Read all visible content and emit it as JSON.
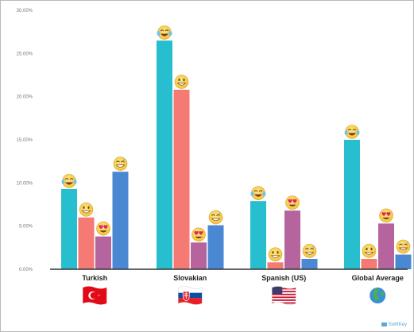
{
  "chart_data": {
    "type": "bar",
    "title": "",
    "xlabel": "",
    "ylabel": "",
    "ylim": [
      0,
      30
    ],
    "yticks": [
      {
        "value": 0,
        "label": "0.00%"
      },
      {
        "value": 5,
        "label": "5.00%"
      },
      {
        "value": 10,
        "label": "10.00%"
      },
      {
        "value": 15,
        "label": "15.00%"
      },
      {
        "value": 20,
        "label": "20.00%"
      },
      {
        "value": 25,
        "label": "25.00%"
      },
      {
        "value": 30,
        "label": "30.00%"
      }
    ],
    "grid": false,
    "legend": "none",
    "categories": [
      "Turkish",
      "Slovakian",
      "Spanish (US)",
      "Global Average"
    ],
    "category_icons": [
      "flag-turkey",
      "flag-slovakia",
      "flag-usa",
      "globe"
    ],
    "series": [
      {
        "emoji": "face-with-tears-of-joy",
        "color": "#27bfcf",
        "values": [
          9.3,
          26.5,
          7.9,
          15.0
        ]
      },
      {
        "emoji": "grinning-face",
        "color": "#f47a73",
        "values": [
          6.0,
          20.8,
          0.8,
          1.2
        ]
      },
      {
        "emoji": "smiling-face-with-heart-eyes",
        "color": "#b5649e",
        "values": [
          3.8,
          3.1,
          6.8,
          5.3
        ]
      },
      {
        "emoji": "grinning-face-with-sweat",
        "color": "#4a88d3",
        "values": [
          11.3,
          5.1,
          1.2,
          1.7
        ]
      }
    ]
  },
  "watermark": {
    "text": "SwiftKey"
  }
}
